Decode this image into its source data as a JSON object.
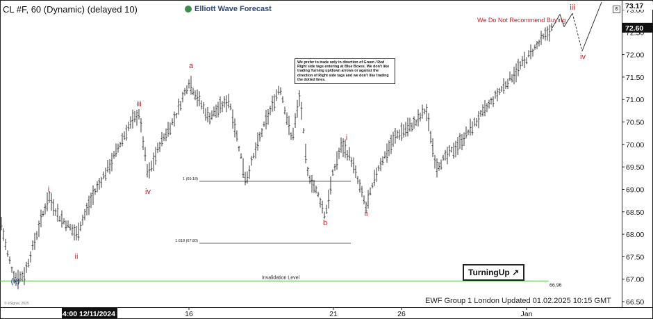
{
  "header": {
    "title": "CL #F, 60 (Dynamic) (delayed 10)",
    "logo_text": "Elliott Wave Forecast",
    "config_icon": "gear-icon"
  },
  "notes": {
    "advice": "We prefer to trade only in direction of Green / Red Right side tags entering at Blue Boxes. We don't like trading Turning up/down arrows or against the direction of Right side tags and we don't like trading the dotted lines.",
    "warning": "We Do Not Recommend Buying",
    "turning": "TurningUp",
    "turning_icon": "arrow-up-right-icon",
    "footer": "EWF Group 1 London Updated 01.02.2025 10:15 GMT",
    "copyright": "© eSignal, 2025"
  },
  "chart_data": {
    "type": "ohlc",
    "price_axis": {
      "min": 66.5,
      "max": 73.17,
      "ticks": [
        "73.00",
        "72.50",
        "72.00",
        "71.50",
        "71.00",
        "70.50",
        "70.00",
        "69.50",
        "69.00",
        "68.50",
        "68.00",
        "67.50",
        "67.00",
        "66.50"
      ],
      "current_price": "72.60",
      "top_label": "73.17"
    },
    "time_axis": {
      "labels": [
        "4:00 12/11/2024",
        "16",
        "21",
        "26",
        "Jan"
      ]
    },
    "colors": {
      "bars": "#222222",
      "wave_labels": "#c0262c",
      "wave_x": "#1e2a8c",
      "invalidation": "#55c040",
      "fib_lines": "#333333",
      "projection": "#333333"
    },
    "waypoints": [
      [
        0,
        68.4
      ],
      [
        10,
        67.6
      ],
      [
        22,
        67.0
      ],
      [
        35,
        67.1
      ],
      [
        45,
        67.6
      ],
      [
        70,
        68.85
      ],
      [
        85,
        68.4
      ],
      [
        110,
        68.0
      ],
      [
        135,
        68.9
      ],
      [
        160,
        69.6
      ],
      [
        185,
        70.4
      ],
      [
        200,
        70.7
      ],
      [
        213,
        69.3
      ],
      [
        230,
        70.0
      ],
      [
        252,
        70.6
      ],
      [
        272,
        71.4
      ],
      [
        300,
        70.6
      ],
      [
        330,
        71.0
      ],
      [
        354,
        69.2
      ],
      [
        375,
        70.2
      ],
      [
        403,
        71.3
      ],
      [
        420,
        70.1
      ],
      [
        432,
        71.1
      ],
      [
        442,
        69.4
      ],
      [
        460,
        68.8
      ],
      [
        468,
        68.4
      ],
      [
        480,
        69.4
      ],
      [
        492,
        70.0
      ],
      [
        505,
        69.7
      ],
      [
        527,
        68.6
      ],
      [
        545,
        69.5
      ],
      [
        570,
        70.2
      ],
      [
        600,
        70.5
      ],
      [
        613,
        70.8
      ],
      [
        628,
        69.5
      ],
      [
        660,
        70.0
      ],
      [
        690,
        70.6
      ],
      [
        720,
        71.2
      ],
      [
        752,
        71.8
      ],
      [
        778,
        72.3
      ],
      [
        795,
        72.6
      ]
    ],
    "bar_x_range": [
      0,
      795
    ],
    "wave_labels": [
      {
        "text": "(x)",
        "price": 66.9,
        "x": 22,
        "color": "wave_x"
      },
      {
        "text": "i",
        "price": 68.95,
        "x": 70,
        "color": "wave_labels"
      },
      {
        "text": "ii",
        "price": 67.45,
        "x": 110,
        "color": "wave_labels"
      },
      {
        "text": "iii",
        "price": 70.85,
        "x": 200,
        "color": "wave_labels"
      },
      {
        "text": "iv",
        "price": 68.9,
        "x": 213,
        "color": "wave_labels"
      },
      {
        "text": "a",
        "price": 71.7,
        "x": 275,
        "color": "wave_labels"
      },
      {
        "text": "b",
        "price": 68.2,
        "x": 468,
        "color": "wave_labels"
      },
      {
        "text": "i",
        "price": 70.1,
        "x": 499,
        "color": "wave_labels"
      },
      {
        "text": "ii",
        "price": 68.4,
        "x": 527,
        "color": "wave_labels"
      },
      {
        "text": "iii",
        "price": 73.0,
        "x": 824,
        "color": "wave_labels"
      },
      {
        "text": "iv",
        "price": 71.9,
        "x": 839,
        "color": "wave_labels"
      }
    ],
    "fib_levels": [
      {
        "label": "1 (69.18)",
        "price": 69.18,
        "x_from": 287,
        "x_to": 505
      },
      {
        "label": "1.618 (67.80)",
        "price": 67.8,
        "x_from": 287,
        "x_to": 505
      }
    ],
    "invalidation": {
      "label": "Invalidation Level",
      "price": 66.96,
      "value_label": "66.96",
      "x_from": 0,
      "x_to": 790
    },
    "projection": [
      {
        "x": 795,
        "price": 72.6,
        "dashed": false
      },
      {
        "x": 806,
        "price": 72.9,
        "dashed": false
      },
      {
        "x": 812,
        "price": 72.62,
        "dashed": false
      },
      {
        "x": 824,
        "price": 72.92,
        "dashed": true
      },
      {
        "x": 838,
        "price": 72.08,
        "dashed": false
      },
      {
        "x": 866,
        "price": 73.17,
        "dashed": false
      }
    ]
  }
}
